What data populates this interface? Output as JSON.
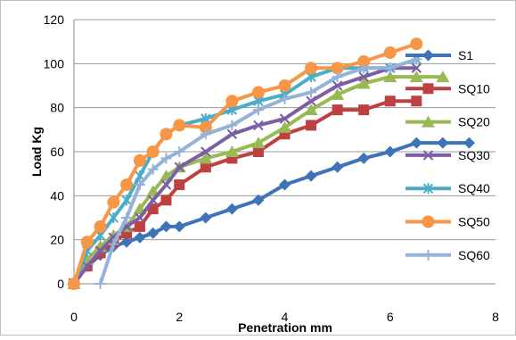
{
  "chart_data": {
    "type": "line",
    "title": "",
    "xlabel": "Penetration mm",
    "ylabel": "Load Kg",
    "xlim": [
      0,
      8
    ],
    "ylim": [
      0,
      120
    ],
    "xticks": [
      "0",
      "2",
      "4",
      "6",
      "8"
    ],
    "yticks": [
      "0",
      "20",
      "40",
      "60",
      "80",
      "100",
      "120"
    ],
    "grid": true,
    "legend_position": "right",
    "series": [
      {
        "name": "S1",
        "color": "#3f73b8",
        "marker": "diamond",
        "x": [
          0,
          0.25,
          0.5,
          0.75,
          1.0,
          1.25,
          1.5,
          1.75,
          2.0,
          2.5,
          3.0,
          3.5,
          4.0,
          4.5,
          5.0,
          5.5,
          6.0,
          6.5,
          7.0,
          7.5
        ],
        "y": [
          0,
          8,
          13,
          17,
          19,
          21,
          23,
          26,
          26,
          30,
          34,
          38,
          45,
          49,
          53,
          57,
          60,
          64,
          64,
          64
        ]
      },
      {
        "name": "SQ10",
        "color": "#bf4040",
        "marker": "square",
        "x": [
          0,
          0.25,
          0.5,
          0.75,
          1.0,
          1.25,
          1.5,
          1.75,
          2.0,
          2.5,
          3.0,
          3.5,
          4.0,
          4.5,
          5.0,
          5.5,
          6.0,
          6.5
        ],
        "y": [
          0,
          8,
          14,
          19,
          23,
          26,
          34,
          38,
          45,
          53,
          57,
          60,
          68,
          72,
          79,
          79,
          83,
          83
        ]
      },
      {
        "name": "SQ20",
        "color": "#98b954",
        "marker": "triangle",
        "x": [
          0,
          0.25,
          0.5,
          0.75,
          1.0,
          1.25,
          1.5,
          1.75,
          2.0,
          2.5,
          3.0,
          3.5,
          4.0,
          4.5,
          5.0,
          5.5,
          6.0,
          6.5,
          7.0
        ],
        "y": [
          0,
          11,
          17,
          22,
          26,
          34,
          42,
          49,
          53,
          57,
          60,
          64,
          71,
          79,
          86,
          91,
          94,
          94,
          94
        ]
      },
      {
        "name": "SQ30",
        "color": "#7b5ea6",
        "marker": "x",
        "x": [
          0,
          0.25,
          0.5,
          0.75,
          1.0,
          1.25,
          1.5,
          1.75,
          2.0,
          2.5,
          3.0,
          3.5,
          4.0,
          4.5,
          5.0,
          5.5,
          6.0,
          6.5
        ],
        "y": [
          0,
          8,
          15,
          21,
          26,
          30,
          38,
          45,
          53,
          60,
          68,
          72,
          75,
          83,
          90,
          94,
          98,
          98
        ]
      },
      {
        "name": "SQ40",
        "color": "#4bacc6",
        "marker": "star",
        "x": [
          0,
          0.25,
          0.5,
          0.75,
          1.0,
          1.25,
          1.5,
          1.75,
          2.0,
          2.5,
          3.0,
          3.5,
          4.0,
          4.5,
          5.0,
          5.5,
          6.0,
          6.5
        ],
        "y": [
          0,
          15,
          22,
          30,
          38,
          49,
          60,
          68,
          72,
          75,
          79,
          83,
          86,
          94,
          98,
          98,
          98,
          102
        ]
      },
      {
        "name": "SQ50",
        "color": "#f79646",
        "marker": "circle",
        "x": [
          0,
          0.25,
          0.5,
          0.75,
          1.0,
          1.25,
          1.5,
          1.75,
          2.0,
          2.5,
          3.0,
          3.5,
          4.0,
          4.5,
          5.0,
          5.5,
          6.0,
          6.5
        ],
        "y": [
          0,
          19,
          26,
          37,
          45,
          56,
          60,
          68,
          72,
          71,
          83,
          87,
          90,
          98,
          98,
          101,
          105,
          109
        ]
      },
      {
        "name": "SQ60",
        "color": "#95b3d7",
        "marker": "plus",
        "x": [
          0.5,
          0.75,
          1.0,
          1.25,
          1.5,
          1.75,
          2.0,
          2.5,
          3.0,
          3.5,
          4.0,
          4.5,
          5.0,
          5.5,
          6.0,
          6.5
        ],
        "y": [
          0,
          18,
          30,
          45,
          52,
          57,
          60,
          68,
          72,
          79,
          84,
          87,
          94,
          98,
          98,
          102
        ]
      }
    ]
  }
}
